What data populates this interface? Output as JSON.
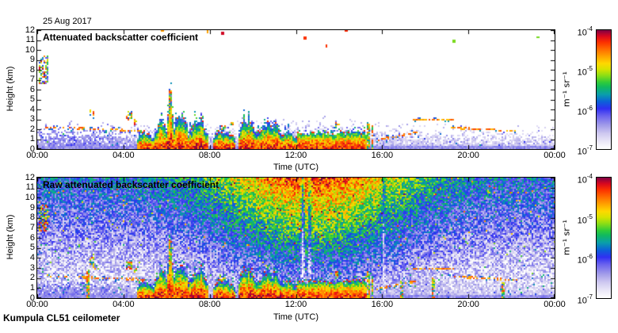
{
  "chart_data": {
    "type": "heatmap",
    "date_label": "25 Aug 2017",
    "footer": "Kumpula CL51 ceilometer",
    "xlabel": "Time (UTC)",
    "ylabel": "Height (km)",
    "x_range_hours": [
      0,
      24
    ],
    "y_range_km": [
      0,
      12
    ],
    "x_ticks": [
      {
        "hour": 0,
        "label": "00:00"
      },
      {
        "hour": 4,
        "label": "04:00"
      },
      {
        "hour": 8,
        "label": "08:00"
      },
      {
        "hour": 12,
        "label": "12:00"
      },
      {
        "hour": 16,
        "label": "16:00"
      },
      {
        "hour": 20,
        "label": "20:00"
      },
      {
        "hour": 24,
        "label": "00:00"
      }
    ],
    "y_ticks": [
      "0",
      "1",
      "2",
      "3",
      "4",
      "5",
      "6",
      "7",
      "8",
      "9",
      "10",
      "11",
      "12"
    ],
    "colorbar": {
      "unit_label": "m⁻¹ sr⁻¹",
      "log10_range": [
        -7,
        -4
      ],
      "ticks": [
        {
          "base": "10",
          "exp": "-4",
          "frac": 0
        },
        {
          "base": "10",
          "exp": "-5",
          "frac": 0.3333
        },
        {
          "base": "10",
          "exp": "-6",
          "frac": 0.6667
        },
        {
          "base": "10",
          "exp": "-7",
          "frac": 1
        }
      ]
    },
    "colormap_stops": [
      {
        "v": 0.0,
        "c": "#ffffff"
      },
      {
        "v": 0.06,
        "c": "#ece9f8"
      },
      {
        "v": 0.13,
        "c": "#cfc9f0"
      },
      {
        "v": 0.2,
        "c": "#a29ce9"
      },
      {
        "v": 0.28,
        "c": "#6a62ee"
      },
      {
        "v": 0.34,
        "c": "#2f2ff2"
      },
      {
        "v": 0.4,
        "c": "#0b62d8"
      },
      {
        "v": 0.46,
        "c": "#0a9faa"
      },
      {
        "v": 0.52,
        "c": "#10b860"
      },
      {
        "v": 0.56,
        "c": "#2ecb3a"
      },
      {
        "v": 0.62,
        "c": "#8ede14"
      },
      {
        "v": 0.67,
        "c": "#d6e300"
      },
      {
        "v": 0.72,
        "c": "#ffd800"
      },
      {
        "v": 0.78,
        "c": "#ffa200"
      },
      {
        "v": 0.84,
        "c": "#ff6a00"
      },
      {
        "v": 0.9,
        "c": "#fb2f00"
      },
      {
        "v": 0.95,
        "c": "#d8071f"
      },
      {
        "v": 1.0,
        "c": "#7d0145"
      }
    ],
    "panels": [
      {
        "id": "attenuated",
        "title": "Attenuated backscatter coefficient",
        "raw": false,
        "seed": 20170825
      },
      {
        "id": "raw",
        "title": "Raw attenuated backscatter coefficient",
        "raw": true,
        "seed": 51
      }
    ],
    "features": {
      "boundary_layer": {
        "top_base_km": 1.55,
        "top_day_amp_km": 0.65,
        "top_night_amp_km": 0.45,
        "night_center_h": 1.5,
        "night_width_h": 3.2,
        "day_center_h": 12.8,
        "day_width_h": 4.6
      },
      "plumes": [
        {
          "t0": 4.65,
          "t1": 5.4,
          "top": 2.0
        },
        {
          "t0": 5.4,
          "t1": 6.05,
          "top": 3.1
        },
        {
          "t0": 6.05,
          "t1": 6.3,
          "top": 5.9
        },
        {
          "t0": 6.3,
          "t1": 7.0,
          "top": 4.0
        },
        {
          "t0": 7.0,
          "t1": 7.9,
          "top": 3.3
        },
        {
          "t0": 8.15,
          "t1": 9.15,
          "top": 2.1
        },
        {
          "t0": 9.3,
          "t1": 10.15,
          "top": 3.4
        },
        {
          "t0": 10.15,
          "t1": 11.35,
          "top": 2.9
        },
        {
          "t0": 11.35,
          "t1": 12.0,
          "top": 2.1
        },
        {
          "t0": 12.0,
          "t1": 15.25,
          "top": 1.75,
          "block": true
        }
      ],
      "cloud_specks": [
        {
          "t": 2.55,
          "h": 3.7,
          "w": 0.12,
          "dh": 0.35
        },
        {
          "t": 2.65,
          "h": 3.05,
          "w": 0.1,
          "dh": 0.25
        },
        {
          "t": 4.25,
          "h": 3.3,
          "w": 0.12,
          "dh": 0.5
        },
        {
          "t": 4.55,
          "h": 2.75,
          "w": 0.1,
          "dh": 0.3
        },
        {
          "t": 8.6,
          "h": 2.05,
          "w": 0.15,
          "dh": 0.3
        },
        {
          "t": 9.05,
          "h": 2.6,
          "w": 0.08,
          "dh": 0.25
        },
        {
          "t": 13.9,
          "h": 2.35,
          "w": 0.12,
          "dh": 0.3
        }
      ],
      "dotted_lines": [
        {
          "t0": 0.4,
          "t1": 4.9,
          "h0": 2.2,
          "h1": 1.85,
          "p": 0.5
        },
        {
          "t0": 15.7,
          "t1": 17.6,
          "h0": 0.9,
          "h1": 1.7,
          "p": 0.6
        },
        {
          "t0": 17.4,
          "t1": 19.3,
          "h0": 2.95,
          "h1": 2.9,
          "p": 0.7
        },
        {
          "t0": 19.0,
          "t1": 21.3,
          "h0": 2.15,
          "h1": 1.95,
          "p": 0.7
        },
        {
          "t0": 21.3,
          "t1": 22.3,
          "h0": 1.9,
          "h1": 1.8,
          "p": 0.35
        }
      ],
      "cirrus_patch": {
        "t0": 0.05,
        "t1": 0.5,
        "h0": 6.6,
        "h1": 9.4,
        "density": 0.55
      },
      "spikes": [
        {
          "t": 2.35,
          "top": 2.9,
          "raw_only": true
        },
        {
          "t": 6.17,
          "top": 5.9,
          "raw_only": false
        },
        {
          "t": 15.32,
          "top": 2.7,
          "raw_only": false
        },
        {
          "t": 15.52,
          "top": 2.4,
          "raw_only": false
        },
        {
          "t": 16.9,
          "top": 1.9,
          "raw_only": true
        },
        {
          "t": 18.35,
          "top": 2.1,
          "raw_only": true
        },
        {
          "t": 21.6,
          "top": 1.6,
          "raw_only": true
        }
      ],
      "stray_dots": [
        {
          "t": 5.8,
          "h": 11.9
        },
        {
          "t": 7.9,
          "h": 11.85
        },
        {
          "t": 8.6,
          "h": 11.7
        },
        {
          "t": 12.4,
          "h": 11.2
        },
        {
          "t": 13.4,
          "h": 10.4
        },
        {
          "t": 14.3,
          "h": 11.9
        },
        {
          "t": 19.3,
          "h": 10.9
        },
        {
          "t": 23.2,
          "h": 11.3
        }
      ],
      "raw_noise": {
        "base_log": -7,
        "height_gain": 1.18,
        "day_gain_base": 0.38,
        "day_gain_height": 1.12,
        "jitter": 0.95,
        "spike_prob": 0.015,
        "spike_boost": 1.1
      },
      "raw_stripes": [
        {
          "t": 12.3,
          "w": 0.12,
          "drop": 1.0
        },
        {
          "t": 12.62,
          "w": 0.1,
          "drop": 0.8
        },
        {
          "t": 16.05,
          "w": 0.08,
          "drop": 0.6
        }
      ]
    }
  }
}
